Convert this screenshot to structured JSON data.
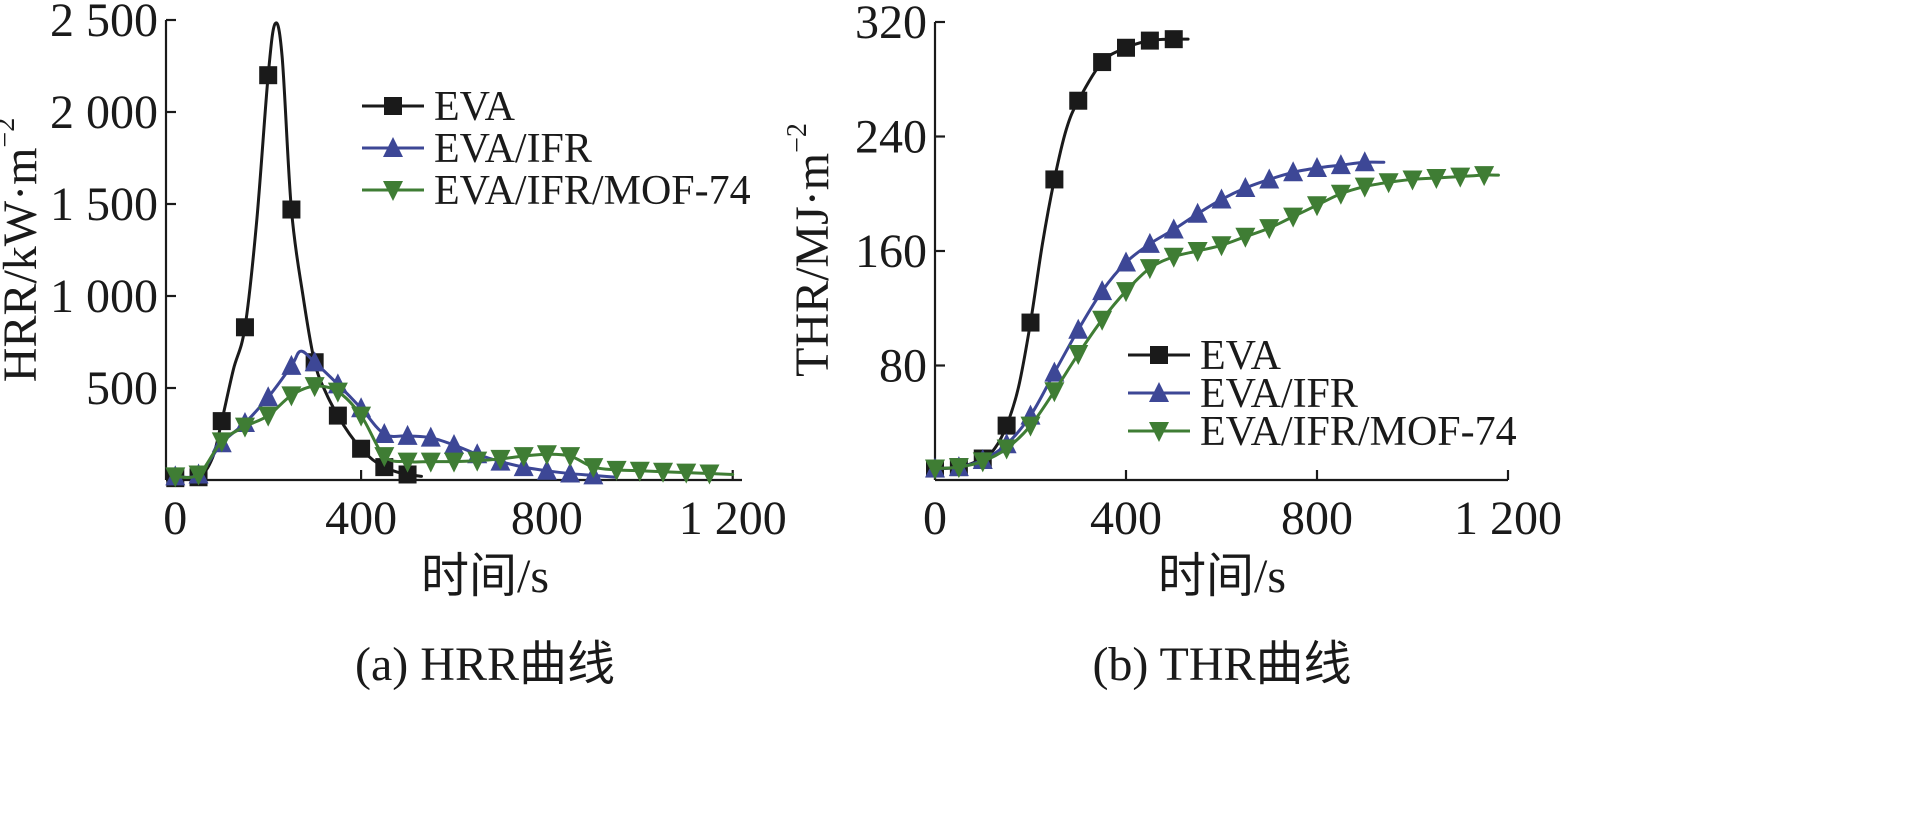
{
  "colors": {
    "EVA": "#1a1a1a",
    "EVA/IFR": "#3d4796",
    "EVA/IFR/MOF-74": "#3f7d34",
    "axis": "#1a1a1a"
  },
  "chart_data": [
    {
      "id": "hrr",
      "type": "line",
      "caption": "(a) HRR曲线",
      "xlabel": "时间/s",
      "ylabel": "HRR/kW·m",
      "ylabel_sup": "−2",
      "xlim": [
        -20,
        1220
      ],
      "ylim": [
        0,
        2500
      ],
      "xticks": [
        0,
        400,
        800,
        1200
      ],
      "xtick_labels": [
        "0",
        "400",
        "800",
        "1 200"
      ],
      "yticks": [
        500,
        1000,
        1500,
        2000,
        2500
      ],
      "ytick_labels": [
        "500",
        "1 000",
        "1 500",
        "2 000",
        "2 500"
      ],
      "legend_position": "upper-right",
      "series": [
        {
          "name": "EVA",
          "marker": "square",
          "color_key": "EVA",
          "x": [
            0,
            50,
            80,
            100,
            125,
            150,
            175,
            200,
            215,
            230,
            250,
            275,
            300,
            325,
            350,
            375,
            400,
            425,
            450,
            475,
            500,
            530
          ],
          "y": [
            10,
            15,
            120,
            320,
            600,
            830,
            1400,
            2200,
            2480,
            2300,
            1470,
            1000,
            640,
            470,
            350,
            250,
            170,
            110,
            70,
            45,
            30,
            20
          ],
          "mx": [
            0,
            50,
            100,
            150,
            200,
            250,
            300,
            350,
            400,
            450,
            500
          ]
        },
        {
          "name": "EVA/IFR",
          "marker": "triangle-up",
          "color_key": "EVA/IFR",
          "x": [
            0,
            50,
            100,
            150,
            200,
            250,
            270,
            300,
            350,
            400,
            450,
            500,
            550,
            600,
            650,
            700,
            750,
            800,
            850,
            900,
            950
          ],
          "y": [
            20,
            30,
            200,
            310,
            450,
            620,
            700,
            640,
            520,
            390,
            250,
            240,
            230,
            190,
            140,
            100,
            70,
            50,
            35,
            25,
            15
          ],
          "mx": [
            0,
            50,
            100,
            150,
            200,
            250,
            300,
            350,
            400,
            450,
            500,
            550,
            600,
            650,
            700,
            750,
            800,
            850,
            900
          ]
        },
        {
          "name": "EVA/IFR/MOF-74",
          "marker": "triangle-down",
          "color_key": "EVA/IFR/MOF-74",
          "x": [
            0,
            50,
            100,
            150,
            200,
            250,
            300,
            350,
            400,
            450,
            500,
            550,
            600,
            650,
            700,
            750,
            800,
            850,
            900,
            950,
            1000,
            1050,
            1100,
            1150,
            1200
          ],
          "y": [
            20,
            30,
            210,
            290,
            350,
            460,
            510,
            480,
            350,
            130,
            100,
            100,
            100,
            105,
            115,
            130,
            140,
            130,
            70,
            55,
            50,
            45,
            40,
            35,
            30
          ],
          "mx": [
            0,
            50,
            100,
            150,
            200,
            250,
            300,
            350,
            400,
            450,
            500,
            550,
            600,
            650,
            700,
            750,
            800,
            850,
            900,
            950,
            1000,
            1050,
            1100,
            1150
          ]
        }
      ]
    },
    {
      "id": "thr",
      "type": "line",
      "caption": "(b) THR曲线",
      "xlabel": "时间/s",
      "ylabel": "THR/MJ·m",
      "ylabel_sup": "−2",
      "xlim": [
        0,
        1200
      ],
      "ylim": [
        0,
        320
      ],
      "xticks": [
        0,
        400,
        800,
        1200
      ],
      "xtick_labels": [
        "0",
        "400",
        "800",
        "1 200"
      ],
      "yticks": [
        80,
        160,
        240,
        320
      ],
      "ytick_labels": [
        "80",
        "160",
        "240",
        "320"
      ],
      "legend_position": "lower-right",
      "series": [
        {
          "name": "EVA",
          "marker": "square",
          "color_key": "EVA",
          "x": [
            0,
            50,
            100,
            125,
            150,
            175,
            200,
            225,
            250,
            275,
            300,
            350,
            400,
            450,
            500,
            530
          ],
          "y": [
            8,
            9,
            15,
            22,
            38,
            65,
            110,
            165,
            210,
            245,
            265,
            292,
            302,
            307,
            308,
            308
          ],
          "mx": [
            0,
            50,
            100,
            150,
            200,
            250,
            300,
            350,
            400,
            450,
            500
          ]
        },
        {
          "name": "EVA/IFR",
          "marker": "triangle-up",
          "color_key": "EVA/IFR",
          "x": [
            0,
            50,
            100,
            150,
            200,
            250,
            300,
            350,
            400,
            450,
            500,
            550,
            600,
            650,
            700,
            750,
            800,
            850,
            900,
            940
          ],
          "y": [
            8,
            9,
            14,
            25,
            45,
            75,
            105,
            132,
            152,
            165,
            175,
            186,
            196,
            204,
            210,
            215,
            218,
            220,
            222,
            222
          ],
          "mx": [
            0,
            50,
            100,
            150,
            200,
            250,
            300,
            350,
            400,
            450,
            500,
            550,
            600,
            650,
            700,
            750,
            800,
            850,
            900
          ]
        },
        {
          "name": "EVA/IFR/MOF-74",
          "marker": "triangle-down",
          "color_key": "EVA/IFR/MOF-74",
          "x": [
            0,
            50,
            100,
            150,
            200,
            250,
            300,
            350,
            400,
            450,
            500,
            550,
            600,
            650,
            700,
            750,
            800,
            850,
            900,
            950,
            1000,
            1050,
            1100,
            1150,
            1180
          ],
          "y": [
            8,
            9,
            13,
            22,
            38,
            62,
            88,
            112,
            132,
            148,
            156,
            160,
            164,
            170,
            176,
            184,
            192,
            200,
            205,
            208,
            210,
            211,
            212,
            213,
            213
          ],
          "mx": [
            0,
            50,
            100,
            150,
            200,
            250,
            300,
            350,
            400,
            450,
            500,
            550,
            600,
            650,
            700,
            750,
            800,
            850,
            900,
            950,
            1000,
            1050,
            1100,
            1150
          ]
        }
      ]
    }
  ]
}
